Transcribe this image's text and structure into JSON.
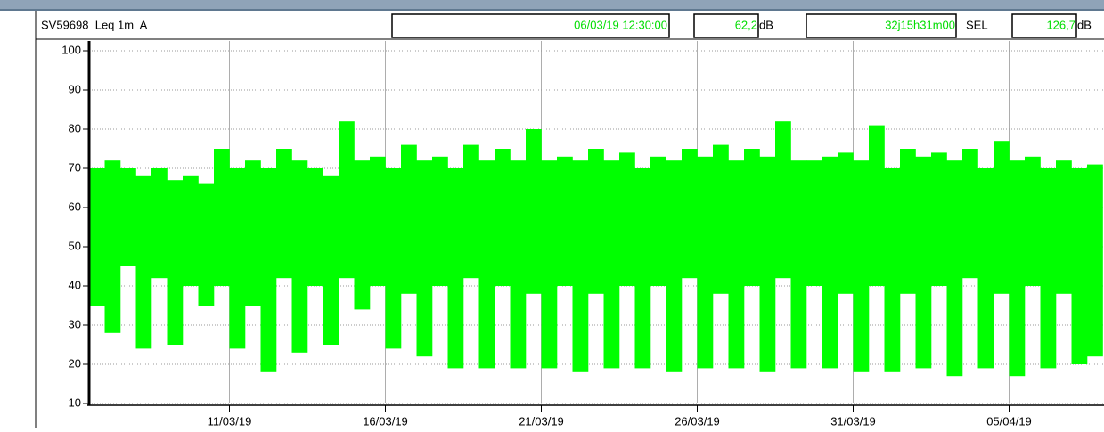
{
  "header": {
    "instrument": "SV59698  Leq 1m  A",
    "start": "06/03/19 12:30:00",
    "leq": "62,2",
    "leq_unit": "dB",
    "duration": "32j15h31m00",
    "sel_label": "SEL",
    "sel": "126,7",
    "sel_unit": "dB"
  },
  "chart_data": {
    "type": "range",
    "categories": [
      null,
      null,
      null,
      null,
      null,
      null,
      null,
      null,
      null,
      "11/03/19",
      null,
      null,
      null,
      null,
      null,
      null,
      null,
      null,
      null,
      "16/03/19",
      null,
      null,
      null,
      null,
      null,
      null,
      null,
      null,
      null,
      "21/03/19",
      null,
      null,
      null,
      null,
      null,
      null,
      null,
      null,
      null,
      "26/03/19",
      null,
      null,
      null,
      null,
      null,
      null,
      null,
      null,
      null,
      "31/03/19",
      null,
      null,
      null,
      null,
      null,
      null,
      null,
      null,
      null,
      "05/04/19",
      null,
      null,
      null,
      null,
      null
    ],
    "high": [
      70,
      72,
      70,
      68,
      70,
      67,
      68,
      66,
      75,
      70,
      72,
      70,
      75,
      72,
      70,
      68,
      82,
      72,
      73,
      70,
      76,
      72,
      73,
      70,
      76,
      72,
      75,
      72,
      80,
      72,
      73,
      72,
      75,
      72,
      74,
      70,
      73,
      72,
      75,
      73,
      76,
      72,
      75,
      73,
      82,
      72,
      72,
      73,
      74,
      72,
      81,
      70,
      75,
      73,
      74,
      72,
      75,
      70,
      77,
      72,
      73,
      70,
      72,
      70,
      71
    ],
    "low": [
      35,
      28,
      45,
      24,
      42,
      25,
      40,
      35,
      40,
      24,
      35,
      18,
      42,
      23,
      40,
      25,
      42,
      34,
      40,
      24,
      38,
      22,
      40,
      19,
      42,
      19,
      40,
      19,
      38,
      19,
      40,
      18,
      38,
      19,
      40,
      19,
      40,
      18,
      42,
      19,
      38,
      19,
      40,
      18,
      42,
      19,
      40,
      19,
      38,
      18,
      40,
      18,
      38,
      19,
      40,
      17,
      42,
      19,
      38,
      17,
      40,
      19,
      38,
      20,
      22
    ],
    "color": "#00ff00",
    "ylim": [
      10,
      100
    ],
    "yticks": [
      10,
      20,
      30,
      40,
      50,
      60,
      70,
      80,
      90,
      100
    ],
    "grid": true
  }
}
